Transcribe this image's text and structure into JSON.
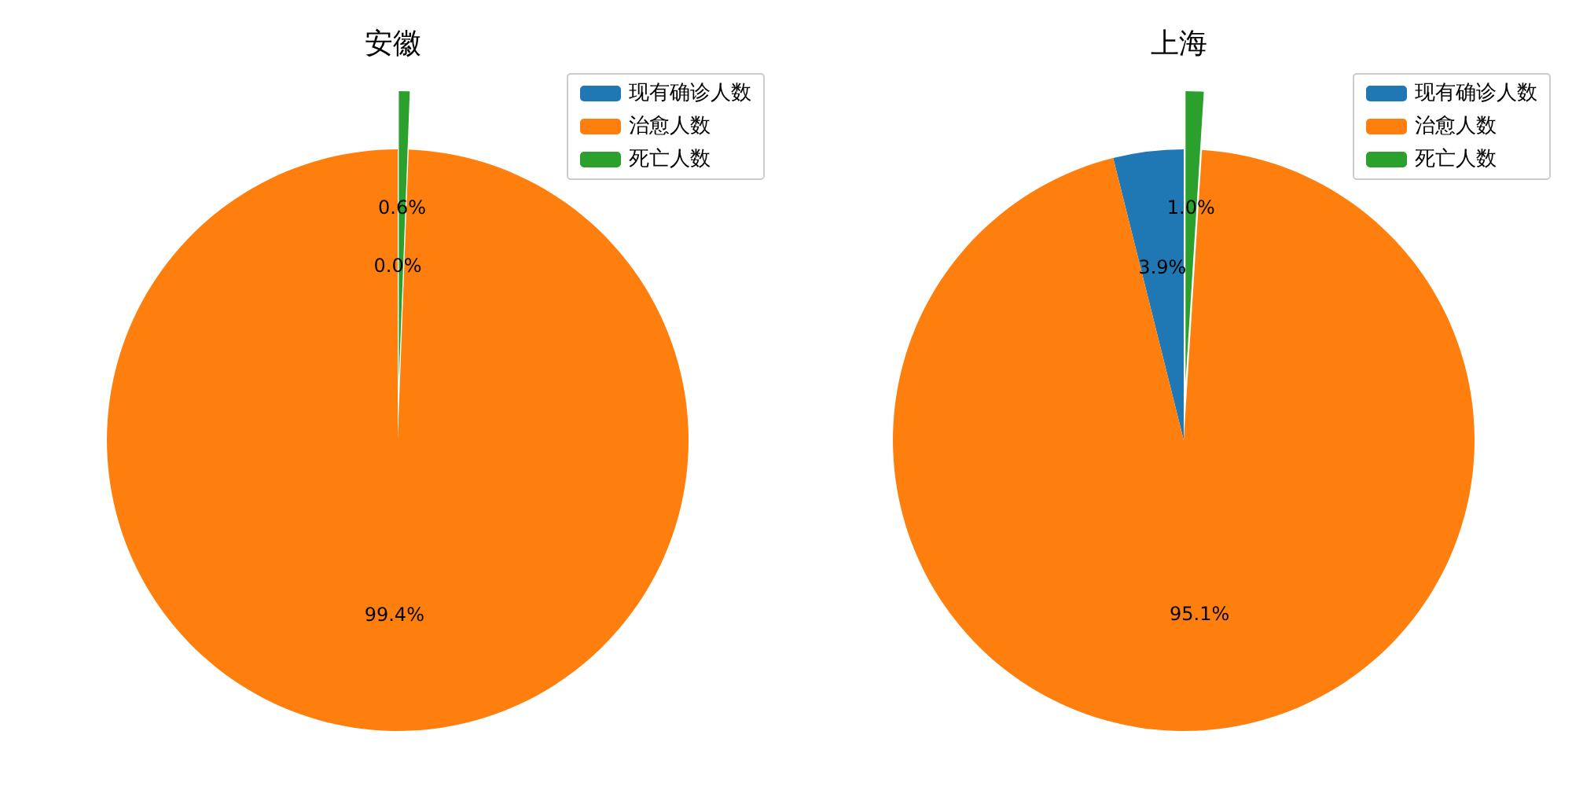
{
  "chart_data": [
    {
      "type": "pie",
      "title": "安徽",
      "categories": [
        "现有确诊人数",
        "治愈人数",
        "死亡人数"
      ],
      "values": [
        0.0,
        99.4,
        0.6
      ],
      "colors": [
        "#1f77b4",
        "#ff7f0e",
        "#2ca02c"
      ],
      "value_labels": [
        "0.0%",
        "99.4%",
        "0.6%"
      ],
      "legend": "top right"
    },
    {
      "type": "pie",
      "title": "上海",
      "categories": [
        "现有确诊人数",
        "治愈人数",
        "死亡人数"
      ],
      "values": [
        3.9,
        95.1,
        1.0
      ],
      "colors": [
        "#1f77b4",
        "#ff7f0e",
        "#2ca02c"
      ],
      "value_labels": [
        "3.9%",
        "95.1%",
        "1.0%"
      ],
      "legend": "top right"
    }
  ]
}
